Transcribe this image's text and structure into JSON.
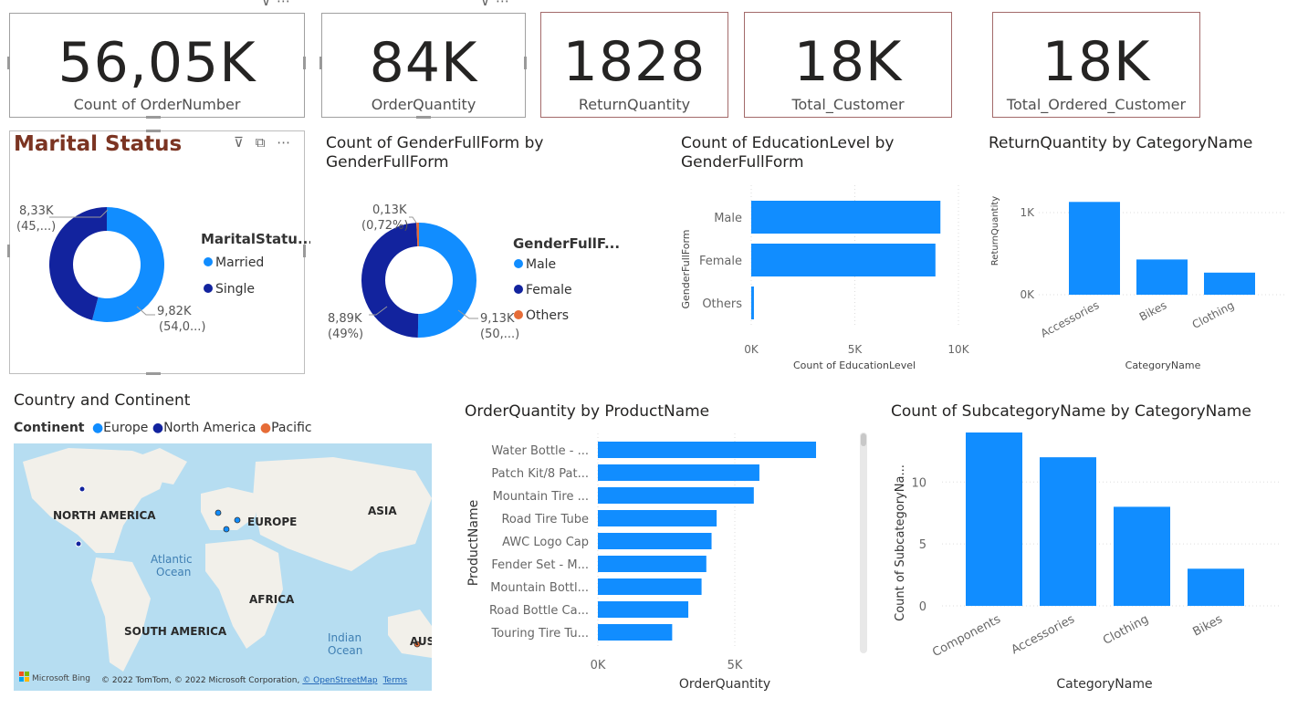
{
  "kpis": [
    {
      "value": "56,05K",
      "label": "Count of OrderNumber"
    },
    {
      "value": "84K",
      "label": "OrderQuantity"
    },
    {
      "value": "1828",
      "label": "ReturnQuantity"
    },
    {
      "value": "18K",
      "label": "Total_Customer"
    },
    {
      "value": "18K",
      "label": "Total_Ordered_Customer"
    }
  ],
  "marital": {
    "title": "Marital Status",
    "legend_title": "MaritalStatu...",
    "legend": [
      "Married",
      "Single"
    ],
    "label_single": [
      "8,33K",
      "(45,...)"
    ],
    "label_married": [
      "9,82K",
      "(54,0...)"
    ],
    "chart_data": {
      "type": "pie",
      "categories": [
        "Married",
        "Single"
      ],
      "values": [
        9820,
        8330
      ],
      "colors": [
        "#118dff",
        "#12239e"
      ]
    }
  },
  "gender": {
    "title_l1": "Count of GenderFullForm by",
    "title_l2": "GenderFullForm",
    "legend_title": "GenderFullF...",
    "legend": [
      "Male",
      "Female",
      "Others"
    ],
    "label_others": [
      "0,13K",
      "(0,72%)"
    ],
    "label_female": [
      "8,89K",
      "(49%)"
    ],
    "label_male": [
      "9,13K",
      "(50,...)"
    ],
    "chart_data": {
      "type": "pie",
      "categories": [
        "Male",
        "Female",
        "Others"
      ],
      "values": [
        9130,
        8890,
        130
      ],
      "colors": [
        "#118dff",
        "#12239e",
        "#e66c37"
      ]
    }
  },
  "education": {
    "title_l1": "Count of EducationLevel by",
    "title_l2": "GenderFullForm",
    "ylabel": "GenderFullForm",
    "xlabel": "Count of EducationLevel",
    "xticks": [
      "0K",
      "5K",
      "10K"
    ],
    "chart_data": {
      "type": "bar",
      "orientation": "horizontal",
      "categories": [
        "Male",
        "Female",
        "Others"
      ],
      "values": [
        9130,
        8890,
        130
      ],
      "xlim": [
        0,
        10000
      ]
    }
  },
  "returns": {
    "title": "ReturnQuantity by CategoryName",
    "ylabel": "ReturnQuantity",
    "xlabel": "CategoryName",
    "yticks": [
      "1K",
      "0K"
    ],
    "chart_data": {
      "type": "bar",
      "categories": [
        "Accessories",
        "Bikes",
        "Clothing"
      ],
      "values": [
        1130,
        429,
        269
      ],
      "ylim": [
        0,
        1200
      ]
    }
  },
  "map": {
    "title": "Country and Continent",
    "legend_label": "Continent",
    "legend": [
      "Europe",
      "North America",
      "Pacific"
    ],
    "colors": [
      "#118dff",
      "#12239e",
      "#e66c37"
    ],
    "labels": [
      "NORTH AMERICA",
      "EUROPE",
      "ASIA",
      "Atlantic",
      "Ocean",
      "AFRICA",
      "SOUTH AMERICA",
      "Indian",
      "Ocean",
      "AUS"
    ],
    "bing": "Microsoft Bing",
    "copyright": "© 2022 TomTom, © 2022 Microsoft Corporation,",
    "osm": "© OpenStreetMap",
    "terms": "Terms"
  },
  "orderqty": {
    "title": "OrderQuantity by ProductName",
    "ylabel": "ProductName",
    "xlabel": "OrderQuantity",
    "xticks": [
      "0K",
      "5K"
    ],
    "chart_data": {
      "type": "bar",
      "orientation": "horizontal",
      "categories": [
        "Water Bottle - ...",
        "Patch Kit/8 Pat...",
        "Mountain Tire ...",
        "Road Tire Tube",
        "AWC Logo Cap",
        "Fender Set - M...",
        "Mountain Bottl...",
        "Road Bottle Ca...",
        "Touring Tire Tu..."
      ],
      "values": [
        7967,
        5898,
        5694,
        4337,
        4151,
        3960,
        3786,
        3302,
        2713
      ],
      "xlim": [
        0,
        9600
      ]
    }
  },
  "subcat": {
    "title": "Count of SubcategoryName by CategoryName",
    "ylabel": "Count of SubcategoryNa...",
    "xlabel": "CategoryName",
    "yticks": [
      "10",
      "5",
      "0"
    ],
    "chart_data": {
      "type": "bar",
      "categories": [
        "Components",
        "Accessories",
        "Clothing",
        "Bikes"
      ],
      "values": [
        14,
        12,
        8,
        3
      ],
      "ylim": [
        0,
        14
      ]
    }
  }
}
